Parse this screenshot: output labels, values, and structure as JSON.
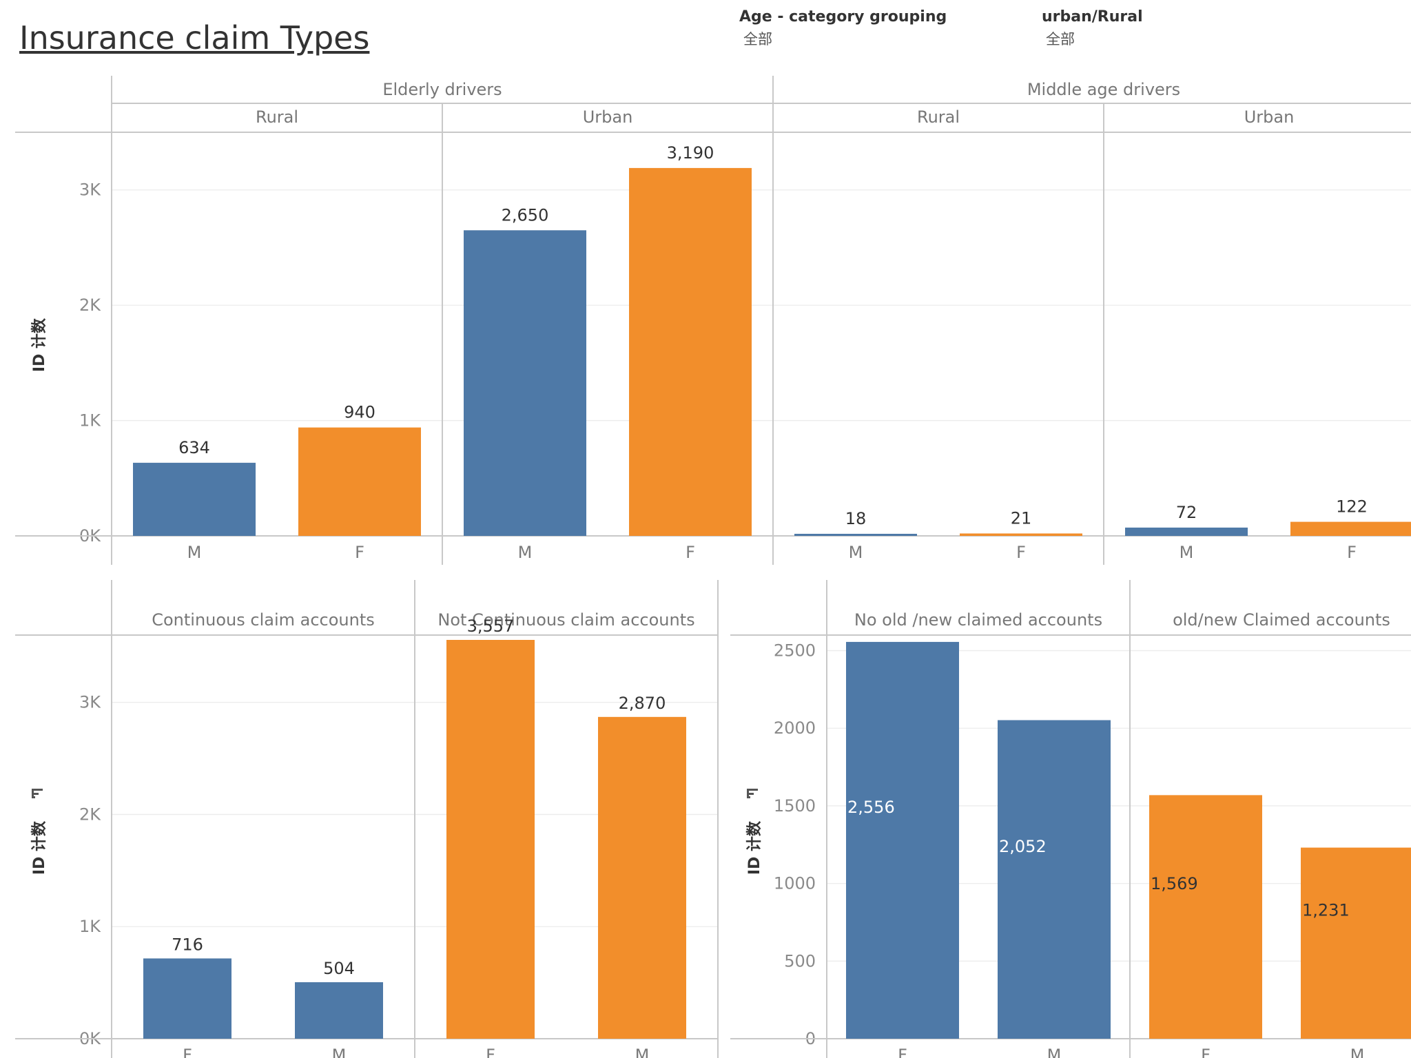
{
  "dashboard": {
    "title": "Insurance claim Types",
    "filters": [
      {
        "label": "Age - category grouping",
        "value": "全部"
      },
      {
        "label": "urban/Rural",
        "value": "全部"
      }
    ]
  },
  "colors": {
    "M": "#4e79a7",
    "F": "#f28e2b",
    "frame": "#c8c8c8",
    "grid": "#ececec"
  },
  "chart_data": [
    {
      "type": "bar",
      "ylabel": "ID 计数",
      "ylim": [
        0,
        3500
      ],
      "yticks": [
        "0K",
        "1K",
        "2K",
        "3K"
      ],
      "legend": "none",
      "groups": [
        {
          "name": "Elderly drivers",
          "subgroups": [
            {
              "name": "Rural",
              "categories": [
                "M",
                "F"
              ],
              "values": [
                634,
                940
              ],
              "labels": [
                "634",
                "940"
              ]
            },
            {
              "name": "Urban",
              "categories": [
                "M",
                "F"
              ],
              "values": [
                2650,
                3190
              ],
              "labels": [
                "2,650",
                "3,190"
              ]
            }
          ]
        },
        {
          "name": "Middle age drivers",
          "subgroups": [
            {
              "name": "Rural",
              "categories": [
                "M",
                "F"
              ],
              "values": [
                18,
                21
              ],
              "labels": [
                "18",
                "21"
              ]
            },
            {
              "name": "Urban",
              "categories": [
                "M",
                "F"
              ],
              "values": [
                72,
                122
              ],
              "labels": [
                "72",
                "122"
              ]
            }
          ]
        }
      ]
    },
    {
      "type": "bar",
      "ylabel": "ID 计数",
      "ylim": [
        0,
        3600
      ],
      "yticks": [
        "0K",
        "1K",
        "2K",
        "3K"
      ],
      "legend": "none",
      "panels": [
        {
          "name": "Continuous claim accounts",
          "categories": [
            "F",
            "M"
          ],
          "values": [
            716,
            504
          ],
          "labels": [
            "716",
            "504"
          ],
          "color": "M"
        },
        {
          "name": "Not Continuous claim accounts",
          "categories": [
            "F",
            "M"
          ],
          "values": [
            3557,
            2870
          ],
          "labels": [
            "3,557",
            "2,870"
          ],
          "color": "F"
        }
      ]
    },
    {
      "type": "bar",
      "ylabel": "ID 计数",
      "ylim": [
        0,
        2600
      ],
      "yticks": [
        "0",
        "500",
        "1000",
        "1500",
        "2000",
        "2500"
      ],
      "legend": "none",
      "panels": [
        {
          "name": "No old /new claimed accounts",
          "categories": [
            "F",
            "M"
          ],
          "values": [
            2556,
            2052
          ],
          "labels": [
            "2,556",
            "2,052"
          ],
          "color": "M"
        },
        {
          "name": "old/new Claimed accounts",
          "categories": [
            "F",
            "M"
          ],
          "values": [
            1569,
            1231
          ],
          "labels": [
            "1,569",
            "1,231"
          ],
          "color": "F"
        }
      ]
    }
  ]
}
